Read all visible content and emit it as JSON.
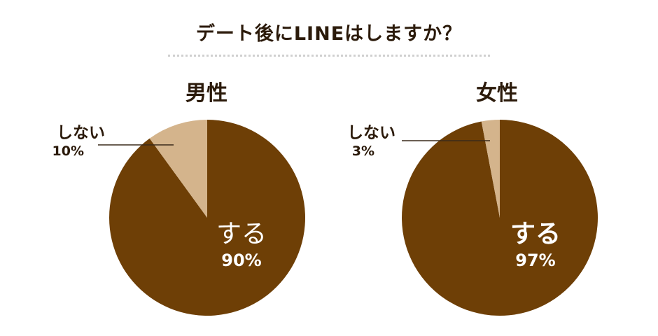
{
  "title": "デート後にLINEはしますか？",
  "colors": {
    "yes": "#6e3f06",
    "no": "#d4b48c",
    "leader": "#3a2a1a",
    "text": "#2b1a0a"
  },
  "chart_data": [
    {
      "type": "pie",
      "title": "男性",
      "slices": [
        {
          "label": "する",
          "value": 90,
          "display": "90%"
        },
        {
          "label": "しない",
          "value": 10,
          "display": "10%"
        }
      ]
    },
    {
      "type": "pie",
      "title": "女性",
      "slices": [
        {
          "label": "する",
          "value": 97,
          "display": "97%"
        },
        {
          "label": "しない",
          "value": 3,
          "display": "3%"
        }
      ]
    }
  ]
}
